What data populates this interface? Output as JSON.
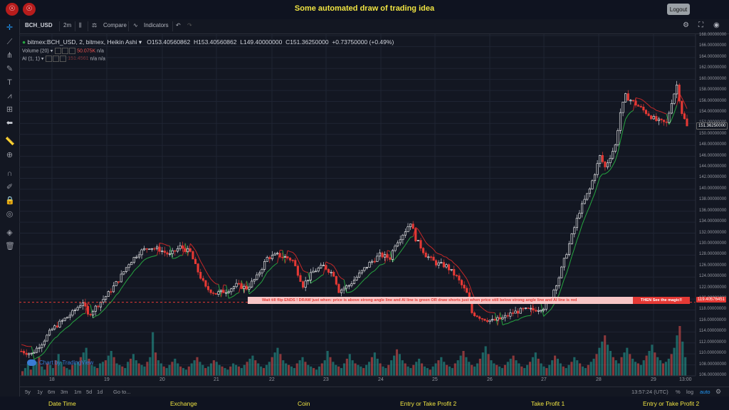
{
  "app": {
    "title": "Some automated draw of trading idea",
    "logout_label": "Logout"
  },
  "toolbar": {
    "symbol": "BCH_USD",
    "interval": "2m",
    "compare_label": "Compare",
    "indicators_label": "Indicators"
  },
  "legend": {
    "symbol_desc": "bitmex:BCH_USD, 2, bitmex, Heikin Ashi",
    "open": "O153.40560862",
    "high": "H153.40560862",
    "low": "L149.40000000",
    "close": "C151.36250000",
    "change": "+0.73750000 (+0.49%)",
    "volume_label": "Volume (20)",
    "volume_value": "50.075K",
    "volume_na": "n/a",
    "ai_label": "AI (1, 1)",
    "ai_value": "151.4561",
    "ai_na1": "n/a",
    "ai_na2": "n/a"
  },
  "banner": {
    "text": "Wait till flip ENDS   !    DRAW just when:  price is above strong angle line and AI line is green          OR          draw shorts just when price still below strong angle line and AI line is red",
    "end_text": "THEN See the magic!!"
  },
  "price_tags": {
    "current": "151.36250000",
    "line": "119.40576451"
  },
  "watermark": "Chart by TradingView",
  "bottom": {
    "ranges": [
      "5y",
      "1y",
      "6m",
      "3m",
      "1m",
      "5d",
      "1d"
    ],
    "goto": "Go to...",
    "time": "13:57:24 (UTC)",
    "percent": "%",
    "log": "log",
    "auto": "auto"
  },
  "footer": {
    "items": [
      "Date Time",
      "Exchange",
      "Coin",
      "Entry or Take Profit 2",
      "Take Profit 1",
      "Entry or Take Profit 2"
    ]
  },
  "colors": {
    "background": "#131722",
    "up": "#ffffff",
    "down": "#e53935",
    "ai_up": "#26a641",
    "ai_down": "#c62828",
    "volume_up": "#26a69a",
    "volume_down": "#ef5350",
    "accent": "#2196f3",
    "title": "#f0e442"
  },
  "chart_data": {
    "type": "candlestick",
    "ylim": [
      106,
      168
    ],
    "y_ticks": [
      106,
      108,
      110,
      112,
      114,
      116,
      118,
      120,
      122,
      124,
      126,
      128,
      130,
      132,
      134,
      136,
      138,
      140,
      142,
      144,
      146,
      148,
      150,
      152,
      154,
      156,
      158,
      160,
      162,
      164,
      166,
      168
    ],
    "y_tick_labels": [
      "106.00000000",
      "108.00000000",
      "110.00000000",
      "112.00000000",
      "114.00000000",
      "116.00000000",
      "118.00000000",
      "120.00000000",
      "122.00000000",
      "124.00000000",
      "126.00000000",
      "128.00000000",
      "130.00000000",
      "132.00000000",
      "134.00000000",
      "136.00000000",
      "138.00000000",
      "140.00000000",
      "142.00000000",
      "144.00000000",
      "146.00000000",
      "148.00000000",
      "150.00000000",
      "152.00000000",
      "154.00000000",
      "156.00000000",
      "158.00000000",
      "160.00000000",
      "162.00000000",
      "164.00000000",
      "166.00000000",
      "168.00000000"
    ],
    "x_tick_labels": [
      "18",
      "19",
      "20",
      "21",
      "22",
      "23",
      "24",
      "25",
      "26",
      "27",
      "28",
      "29",
      "13:00"
    ],
    "horizontal_line": 119.40576451,
    "price_path": [
      [
        0,
        110.5
      ],
      [
        4,
        110.0
      ],
      [
        8,
        112.0
      ],
      [
        12,
        114.5
      ],
      [
        16,
        116.0
      ],
      [
        20,
        117.5
      ],
      [
        24,
        119.5
      ],
      [
        26,
        117.0
      ],
      [
        30,
        119.0
      ],
      [
        34,
        121.0
      ],
      [
        38,
        123.5
      ],
      [
        42,
        126.5
      ],
      [
        46,
        128.5
      ],
      [
        50,
        129.5
      ],
      [
        54,
        129.0
      ],
      [
        58,
        128.0
      ],
      [
        62,
        129.5
      ],
      [
        66,
        128.5
      ],
      [
        68,
        126.0
      ],
      [
        72,
        122.0
      ],
      [
        76,
        121.0
      ],
      [
        80,
        121.5
      ],
      [
        84,
        122.5
      ],
      [
        88,
        122.0
      ],
      [
        92,
        124.0
      ],
      [
        96,
        127.5
      ],
      [
        100,
        128.0
      ],
      [
        104,
        127.5
      ],
      [
        106,
        127.0
      ],
      [
        110,
        122.5
      ],
      [
        114,
        125.0
      ],
      [
        118,
        126.0
      ],
      [
        122,
        124.5
      ],
      [
        124,
        121.5
      ],
      [
        128,
        122.5
      ],
      [
        132,
        124.5
      ],
      [
        136,
        126.5
      ],
      [
        140,
        128.0
      ],
      [
        144,
        127.5
      ],
      [
        146,
        130.0
      ],
      [
        150,
        132.5
      ],
      [
        152,
        134.0
      ],
      [
        154,
        131.0
      ],
      [
        158,
        128.0
      ],
      [
        162,
        126.5
      ],
      [
        166,
        126.0
      ],
      [
        170,
        124.0
      ],
      [
        174,
        121.0
      ],
      [
        176,
        117.5
      ],
      [
        180,
        116.5
      ],
      [
        184,
        116.0
      ],
      [
        188,
        116.5
      ],
      [
        192,
        117.5
      ],
      [
        196,
        118.0
      ],
      [
        200,
        118.0
      ],
      [
        204,
        118.5
      ],
      [
        206,
        119.5
      ],
      [
        210,
        124.0
      ],
      [
        214,
        130.0
      ],
      [
        218,
        136.0
      ],
      [
        222,
        140.0
      ],
      [
        226,
        146.0
      ],
      [
        228,
        144.0
      ],
      [
        232,
        148.0
      ],
      [
        234,
        154.0
      ],
      [
        236,
        157.0
      ],
      [
        240,
        155.5
      ],
      [
        244,
        154.0
      ],
      [
        248,
        152.5
      ],
      [
        252,
        152.0
      ],
      [
        254,
        156.0
      ],
      [
        256,
        159.0
      ],
      [
        258,
        154.0
      ],
      [
        260,
        151.4
      ]
    ],
    "volumes": [
      3,
      5,
      8,
      4,
      7,
      9,
      12,
      6,
      4,
      8,
      7,
      5,
      10,
      14,
      9,
      6,
      5,
      4,
      7,
      8,
      9,
      12,
      15,
      18,
      11,
      7,
      6,
      5,
      8,
      9,
      10,
      13,
      16,
      12,
      8,
      7,
      6,
      5,
      9,
      11,
      14,
      10,
      8,
      7,
      6,
      9,
      12,
      28,
      15,
      10,
      8,
      6,
      5,
      7,
      9,
      11,
      8,
      6,
      5,
      4,
      6,
      8,
      10,
      12,
      9,
      7,
      5,
      6,
      8,
      10,
      9,
      7,
      6,
      5,
      4,
      6,
      8,
      7,
      6,
      5,
      7,
      9,
      11,
      13,
      10,
      8,
      6,
      5,
      7,
      9,
      12,
      15,
      18,
      14,
      10,
      8,
      7,
      6,
      5,
      8,
      10,
      12,
      9,
      7,
      6,
      5,
      4,
      6,
      8,
      10,
      16,
      12,
      9,
      7,
      6,
      5,
      8,
      11,
      14,
      10,
      8,
      7,
      6,
      5,
      7,
      9,
      12,
      15,
      11,
      8,
      6,
      5,
      7,
      10,
      13,
      17,
      14,
      10,
      8,
      6,
      5,
      7,
      9,
      11,
      8,
      6,
      5,
      4,
      6,
      8,
      10,
      12,
      9,
      7,
      6,
      5,
      8,
      10,
      13,
      16,
      12,
      9,
      7,
      6,
      8,
      11,
      15,
      19,
      14,
      10,
      8,
      7,
      6,
      5,
      7,
      9,
      11,
      13,
      10,
      8,
      6,
      5,
      7,
      9,
      12,
      15,
      11,
      8,
      6,
      5,
      7,
      10,
      13,
      11,
      8,
      6,
      5,
      7,
      9,
      12,
      10,
      8,
      6,
      5,
      7,
      9,
      11,
      14,
      18,
      22,
      26,
      20,
      16,
      12,
      10,
      8,
      12,
      15,
      18,
      14,
      11,
      9,
      8,
      7,
      10,
      13,
      16,
      20,
      15,
      12,
      10,
      8,
      9,
      11,
      14,
      18,
      26,
      32,
      22,
      12
    ]
  }
}
